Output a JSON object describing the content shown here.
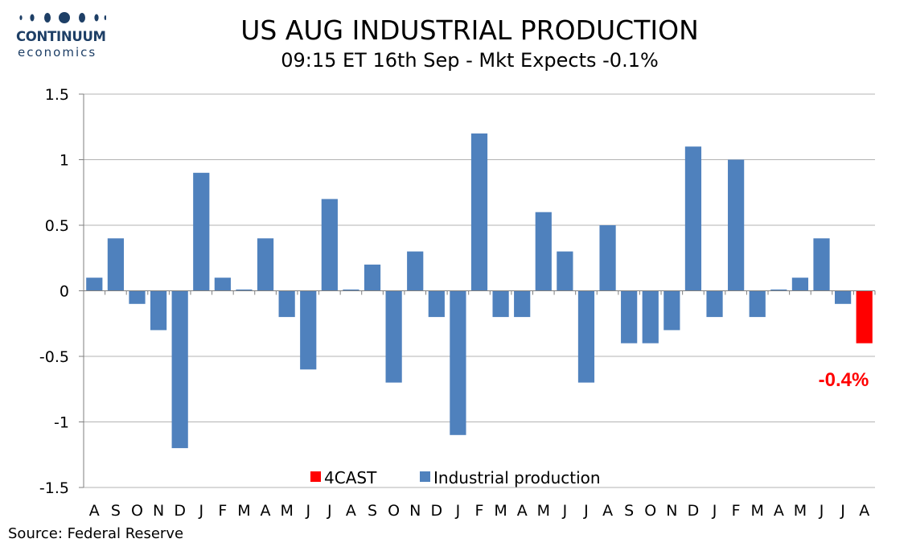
{
  "header": {
    "title": "US AUG INDUSTRIAL PRODUCTION",
    "subtitle": "09:15 ET 16th Sep - Mkt Expects -0.1%"
  },
  "logo": {
    "name": "CONTINUUM",
    "sub": "economics",
    "color": "#1e3f66"
  },
  "footer": {
    "source": "Source: Federal Reserve"
  },
  "chart_data": {
    "type": "bar",
    "categories": [
      "A",
      "S",
      "O",
      "N",
      "D",
      "J",
      "F",
      "M",
      "A",
      "M",
      "J",
      "J",
      "A",
      "S",
      "O",
      "N",
      "D",
      "J",
      "F",
      "M",
      "A",
      "M",
      "J",
      "J",
      "A",
      "S",
      "O",
      "N",
      "D",
      "J",
      "F",
      "M",
      "A",
      "M",
      "J",
      "J",
      "A"
    ],
    "series": [
      {
        "name": "Industrial production",
        "color": "#4f81bd",
        "values": [
          0.1,
          0.4,
          -0.1,
          -0.3,
          -1.2,
          0.9,
          0.1,
          0.01,
          0.4,
          -0.2,
          -0.6,
          0.7,
          0.01,
          0.2,
          -0.7,
          0.3,
          -0.2,
          -1.1,
          1.2,
          -0.2,
          -0.2,
          0.6,
          0.3,
          -0.7,
          0.5,
          -0.4,
          -0.4,
          -0.3,
          1.1,
          -0.2,
          1.0,
          -0.2,
          0.01,
          0.1,
          0.4,
          -0.1,
          null
        ]
      },
      {
        "name": "4CAST",
        "color": "#ff0000",
        "values": [
          null,
          null,
          null,
          null,
          null,
          null,
          null,
          null,
          null,
          null,
          null,
          null,
          null,
          null,
          null,
          null,
          null,
          null,
          null,
          null,
          null,
          null,
          null,
          null,
          null,
          null,
          null,
          null,
          null,
          null,
          null,
          null,
          null,
          null,
          null,
          null,
          -0.4
        ]
      }
    ],
    "ylim": [
      -1.5,
      1.5
    ],
    "yticks": [
      1.5,
      1,
      0.5,
      0,
      -0.5,
      -1,
      -1.5
    ],
    "ytick_labels": [
      "1.5",
      "1",
      "0.5",
      "0",
      "-0.5",
      "-1",
      "-1.5"
    ],
    "grid": true,
    "legend": {
      "placement": "bottom-center",
      "entries": [
        "4CAST",
        "Industrial production"
      ]
    },
    "annotation": {
      "text": "-0.4%",
      "color": "#ff0000"
    }
  }
}
